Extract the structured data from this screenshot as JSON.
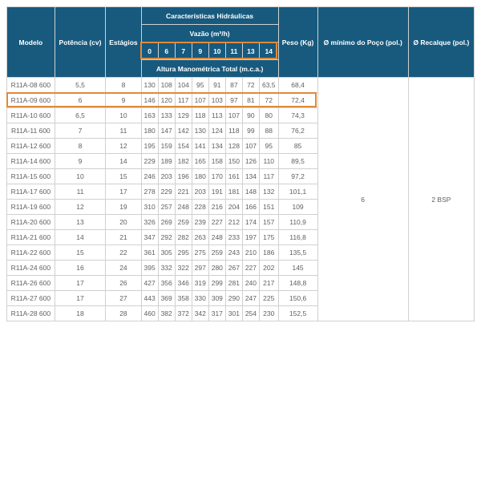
{
  "headers": {
    "modelo": "Modelo",
    "potencia": "Potência (cv)",
    "estagios": "Estágios",
    "caracteristicas": "Características Hidráulicas",
    "vazao": "Vazão (m³/h)",
    "altura": "Altura Manométrica Total (m.c.a.)",
    "peso": "Peso (Kg)",
    "minpoco": "Ø mínimo do Poço (pol.)",
    "recalque": "Ø Recalque (pol.)",
    "flows": [
      "0",
      "6",
      "7",
      "9",
      "10",
      "11",
      "13",
      "14"
    ]
  },
  "merged": {
    "minpoco_val": "6",
    "recalque_val": "2 BSP"
  },
  "rows": [
    {
      "m": "R11A-08 600",
      "p": "5,5",
      "e": "8",
      "v": [
        "130",
        "108",
        "104",
        "95",
        "91",
        "87",
        "72",
        "63,5"
      ],
      "kg": "68,4"
    },
    {
      "m": "R11A-09 600",
      "p": "6",
      "e": "9",
      "v": [
        "146",
        "120",
        "117",
        "107",
        "103",
        "97",
        "81",
        "72"
      ],
      "kg": "72,4",
      "hl": true
    },
    {
      "m": "R11A-10 600",
      "p": "6,5",
      "e": "10",
      "v": [
        "163",
        "133",
        "129",
        "118",
        "113",
        "107",
        "90",
        "80"
      ],
      "kg": "74,3"
    },
    {
      "m": "R11A-11 600",
      "p": "7",
      "e": "11",
      "v": [
        "180",
        "147",
        "142",
        "130",
        "124",
        "118",
        "99",
        "88"
      ],
      "kg": "76,2"
    },
    {
      "m": "R11A-12 600",
      "p": "8",
      "e": "12",
      "v": [
        "195",
        "159",
        "154",
        "141",
        "134",
        "128",
        "107",
        "95"
      ],
      "kg": "85"
    },
    {
      "m": "R11A-14 600",
      "p": "9",
      "e": "14",
      "v": [
        "229",
        "189",
        "182",
        "165",
        "158",
        "150",
        "126",
        "110"
      ],
      "kg": "89,5"
    },
    {
      "m": "R11A-15 600",
      "p": "10",
      "e": "15",
      "v": [
        "246",
        "203",
        "196",
        "180",
        "170",
        "161",
        "134",
        "117"
      ],
      "kg": "97,2"
    },
    {
      "m": "R11A-17 600",
      "p": "11",
      "e": "17",
      "v": [
        "278",
        "229",
        "221",
        "203",
        "191",
        "181",
        "148",
        "132"
      ],
      "kg": "101,1"
    },
    {
      "m": "R11A-19 600",
      "p": "12",
      "e": "19",
      "v": [
        "310",
        "257",
        "248",
        "228",
        "216",
        "204",
        "166",
        "151"
      ],
      "kg": "109"
    },
    {
      "m": "R11A-20 600",
      "p": "13",
      "e": "20",
      "v": [
        "326",
        "269",
        "259",
        "239",
        "227",
        "212",
        "174",
        "157"
      ],
      "kg": "110,9"
    },
    {
      "m": "R11A-21 600",
      "p": "14",
      "e": "21",
      "v": [
        "347",
        "292",
        "282",
        "263",
        "248",
        "233",
        "197",
        "175"
      ],
      "kg": "116,8"
    },
    {
      "m": "R11A-22 600",
      "p": "15",
      "e": "22",
      "v": [
        "361",
        "305",
        "295",
        "275",
        "259",
        "243",
        "210",
        "186"
      ],
      "kg": "135,5"
    },
    {
      "m": "R11A-24 600",
      "p": "16",
      "e": "24",
      "v": [
        "395",
        "332",
        "322",
        "297",
        "280",
        "267",
        "227",
        "202"
      ],
      "kg": "145"
    },
    {
      "m": "R11A-26 600",
      "p": "17",
      "e": "26",
      "v": [
        "427",
        "356",
        "346",
        "319",
        "299",
        "281",
        "240",
        "217"
      ],
      "kg": "148,8"
    },
    {
      "m": "R11A-27 600",
      "p": "17",
      "e": "27",
      "v": [
        "443",
        "369",
        "358",
        "330",
        "309",
        "290",
        "247",
        "225"
      ],
      "kg": "150,6"
    },
    {
      "m": "R11A-28 600",
      "p": "18",
      "e": "28",
      "v": [
        "460",
        "382",
        "372",
        "342",
        "317",
        "301",
        "254",
        "230"
      ],
      "kg": "152,5"
    }
  ],
  "colors": {
    "header_bg": "#175a7e",
    "header_fg": "#ffffff",
    "cell_fg": "#606060",
    "border": "#d0d0d0",
    "highlight": "#e08a3a"
  }
}
